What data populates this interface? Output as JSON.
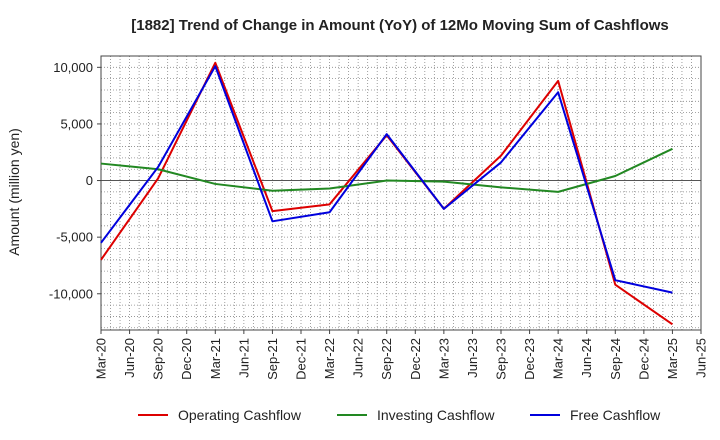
{
  "chart_data": {
    "type": "line",
    "title": "[1882]  Trend of Change in Amount (YoY) of 12Mo Moving Sum of Cashflows",
    "xlabel": "",
    "ylabel": "Amount (million yen)",
    "ylim": [
      -13200,
      11000
    ],
    "yticks": [
      10000,
      5000,
      0,
      -5000,
      -10000
    ],
    "ytick_labels": [
      "10,000",
      "5,000",
      "0",
      "-5,000",
      "-10,000"
    ],
    "categories": [
      "Mar-20",
      "Jun-20",
      "Sep-20",
      "Dec-20",
      "Mar-21",
      "Jun-21",
      "Sep-21",
      "Dec-21",
      "Mar-22",
      "Jun-22",
      "Sep-22",
      "Dec-22",
      "Mar-23",
      "Jun-23",
      "Sep-23",
      "Dec-23",
      "Mar-24",
      "Jun-24",
      "Sep-24",
      "Dec-24",
      "Mar-25",
      "Jun-25"
    ],
    "grid": true,
    "legend_position": "bottom",
    "series": [
      {
        "name": "Operating Cashflow",
        "color": "#dd0000",
        "values": [
          -7000,
          null,
          200,
          null,
          10400,
          null,
          -2700,
          null,
          -2100,
          null,
          4000,
          null,
          -2500,
          null,
          2200,
          null,
          8800,
          null,
          -9200,
          null,
          -12700,
          null
        ]
      },
      {
        "name": "Investing Cashflow",
        "color": "#228822",
        "values": [
          1500,
          null,
          1000,
          null,
          -300,
          null,
          -900,
          null,
          -700,
          null,
          0,
          null,
          -100,
          null,
          -600,
          null,
          -1000,
          null,
          400,
          null,
          2800,
          null
        ]
      },
      {
        "name": "Free Cashflow",
        "color": "#0000dd",
        "values": [
          -5500,
          null,
          1200,
          null,
          10100,
          null,
          -3600,
          null,
          -2800,
          null,
          4100,
          null,
          -2500,
          null,
          1600,
          null,
          7800,
          null,
          -8800,
          null,
          -9900,
          null
        ]
      }
    ]
  }
}
